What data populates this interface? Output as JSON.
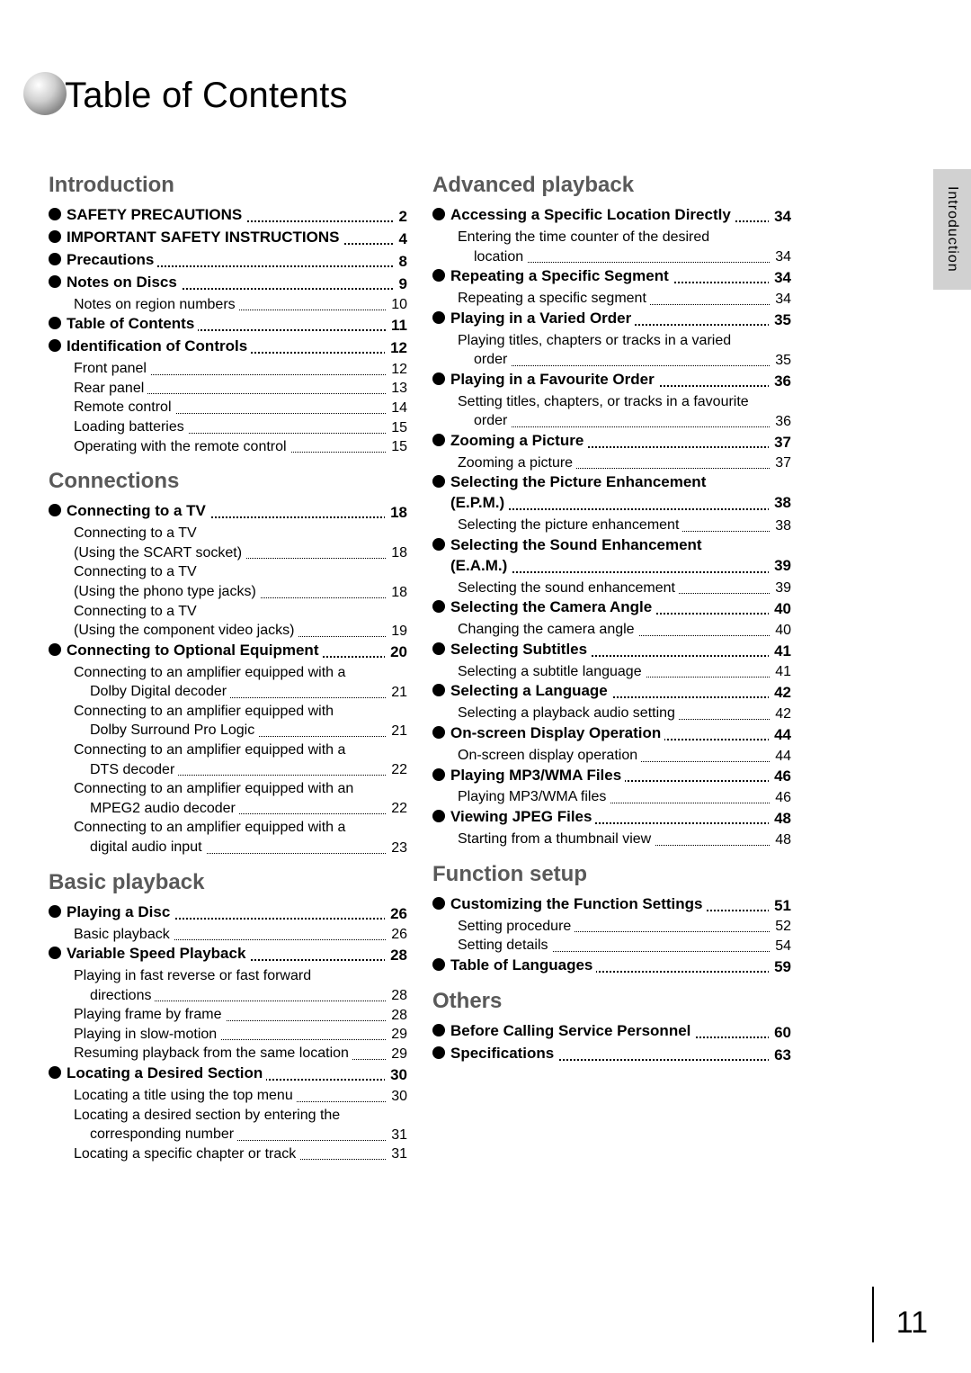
{
  "title": "Table of Contents",
  "side_tab": "Introduction",
  "page_number": "11",
  "colors": {
    "section_head": "#595959",
    "side_tab_bg": "#d1d1d1",
    "text": "#000000",
    "bg": "#ffffff"
  },
  "font_sizes": {
    "title": 40,
    "section": 24,
    "entry": 17,
    "sub": 16,
    "pagenum": 34
  },
  "left_column": {
    "sections": [
      {
        "heading": "Introduction",
        "entries": [
          {
            "label": "SAFETY PRECAUTIONS",
            "page": "2"
          },
          {
            "label": "IMPORTANT SAFETY INSTRUCTIONS",
            "page": "4"
          },
          {
            "label": "Precautions",
            "page": "8"
          },
          {
            "label": "Notes on Discs",
            "page": "9",
            "subs": [
              {
                "label": "Notes on region numbers",
                "page": "10"
              }
            ]
          },
          {
            "label": "Table of Contents",
            "page": "11"
          },
          {
            "label": "Identification of Controls",
            "page": "12",
            "subs": [
              {
                "label": "Front panel",
                "page": "12"
              },
              {
                "label": "Rear panel",
                "page": "13"
              },
              {
                "label": "Remote control",
                "page": "14"
              },
              {
                "label": "Loading batteries",
                "page": "15"
              },
              {
                "label": "Operating with the remote control",
                "page": "15"
              }
            ]
          }
        ]
      },
      {
        "heading": "Connections",
        "entries": [
          {
            "label": "Connecting to a TV",
            "page": "18",
            "subs": [
              {
                "label": "Connecting to a TV",
                "cont": "(Using the SCART socket)",
                "page": "18"
              },
              {
                "label": "Connecting to a TV",
                "cont": "(Using the phono type jacks)",
                "page": "18"
              },
              {
                "label": "Connecting to a TV",
                "cont": "(Using the component video jacks)",
                "page": "19"
              }
            ]
          },
          {
            "label": "Connecting to Optional Equipment",
            "page": "20",
            "subs": [
              {
                "label": "Connecting to an amplifier equipped with a",
                "cont": "Dolby Digital decoder",
                "contIndent": true,
                "page": "21"
              },
              {
                "label": "Connecting to an amplifier equipped with",
                "cont": "Dolby Surround Pro Logic",
                "contIndent": true,
                "page": "21"
              },
              {
                "label": "Connecting to an amplifier equipped with a",
                "cont": "DTS decoder",
                "contIndent": true,
                "page": "22"
              },
              {
                "label": "Connecting to an amplifier equipped with an",
                "cont": "MPEG2 audio decoder",
                "contIndent": true,
                "page": "22"
              },
              {
                "label": "Connecting to an amplifier equipped with a",
                "cont": "digital audio input",
                "contIndent": true,
                "page": "23"
              }
            ]
          }
        ]
      },
      {
        "heading": "Basic playback",
        "entries": [
          {
            "label": "Playing a Disc",
            "page": "26",
            "subs": [
              {
                "label": "Basic playback",
                "page": "26"
              }
            ]
          },
          {
            "label": "Variable Speed Playback",
            "page": "28",
            "subs": [
              {
                "label": "Playing in fast reverse or fast forward",
                "cont": "directions",
                "contIndent": true,
                "page": "28"
              },
              {
                "label": "Playing frame by frame",
                "page": "28"
              },
              {
                "label": "Playing in slow-motion",
                "page": "29"
              },
              {
                "label": "Resuming playback from the same location",
                "page": "29",
                "tight": true
              }
            ]
          },
          {
            "label": "Locating a Desired Section",
            "page": "30",
            "subs": [
              {
                "label": "Locating a title using the top menu",
                "page": "30"
              },
              {
                "label": "Locating a desired section by entering the",
                "cont": "corresponding number",
                "contIndent": true,
                "page": "31"
              },
              {
                "label": "Locating a specific chapter or track",
                "page": "31"
              }
            ]
          }
        ]
      }
    ]
  },
  "right_column": {
    "sections": [
      {
        "heading": "Advanced playback",
        "entries": [
          {
            "label": "Accessing a Specific Location Directly",
            "page": "34",
            "subs": [
              {
                "label": "Entering the time counter of the desired",
                "cont": "location",
                "contIndent": true,
                "page": "34"
              }
            ]
          },
          {
            "label": "Repeating a Specific Segment",
            "page": "34",
            "subs": [
              {
                "label": "Repeating a specific segment",
                "page": "34"
              }
            ]
          },
          {
            "label": "Playing in a Varied Order",
            "page": "35",
            "subs": [
              {
                "label": "Playing titles, chapters or tracks in a varied",
                "cont": "order",
                "contIndent": true,
                "page": "35"
              }
            ]
          },
          {
            "label": "Playing in a Favourite Order",
            "page": "36",
            "subs": [
              {
                "label": "Setting titles, chapters, or tracks in a favourite",
                "cont": "order",
                "contIndent": true,
                "page": "36"
              }
            ]
          },
          {
            "label": "Zooming a Picture",
            "page": "37",
            "subs": [
              {
                "label": "Zooming a picture",
                "page": "37"
              }
            ]
          },
          {
            "label": "Selecting the Picture Enhancement",
            "labelCont": "(E.P.M.)",
            "page": "38",
            "subs": [
              {
                "label": "Selecting the picture enhancement",
                "page": "38"
              }
            ]
          },
          {
            "label": "Selecting the Sound Enhancement",
            "labelCont": "(E.A.M.)",
            "page": "39",
            "subs": [
              {
                "label": "Selecting the sound enhancement",
                "page": "39"
              }
            ]
          },
          {
            "label": "Selecting the Camera Angle",
            "page": "40",
            "subs": [
              {
                "label": "Changing the camera angle",
                "page": "40"
              }
            ]
          },
          {
            "label": "Selecting Subtitles",
            "page": "41",
            "subs": [
              {
                "label": "Selecting a subtitle language",
                "page": "41"
              }
            ]
          },
          {
            "label": "Selecting a Language",
            "page": "42",
            "subs": [
              {
                "label": "Selecting a playback audio setting",
                "page": "42"
              }
            ]
          },
          {
            "label": "On-screen Display Operation",
            "page": "44",
            "subs": [
              {
                "label": "On-screen display operation",
                "page": "44"
              }
            ]
          },
          {
            "label": "Playing MP3/WMA Files",
            "page": "46",
            "subs": [
              {
                "label": "Playing MP3/WMA files",
                "page": "46"
              }
            ]
          },
          {
            "label": "Viewing JPEG Files",
            "page": "48",
            "subs": [
              {
                "label": "Starting from a thumbnail view",
                "page": "48"
              }
            ]
          }
        ]
      },
      {
        "heading": "Function setup",
        "entries": [
          {
            "label": "Customizing the Function Settings",
            "page": "51",
            "subs": [
              {
                "label": "Setting procedure",
                "page": "52"
              },
              {
                "label": "Setting details",
                "page": "54"
              }
            ]
          },
          {
            "label": "Table of Languages",
            "page": "59"
          }
        ]
      },
      {
        "heading": "Others",
        "entries": [
          {
            "label": "Before Calling Service Personnel",
            "page": "60"
          },
          {
            "label": "Specifications",
            "page": "63"
          }
        ]
      }
    ]
  }
}
